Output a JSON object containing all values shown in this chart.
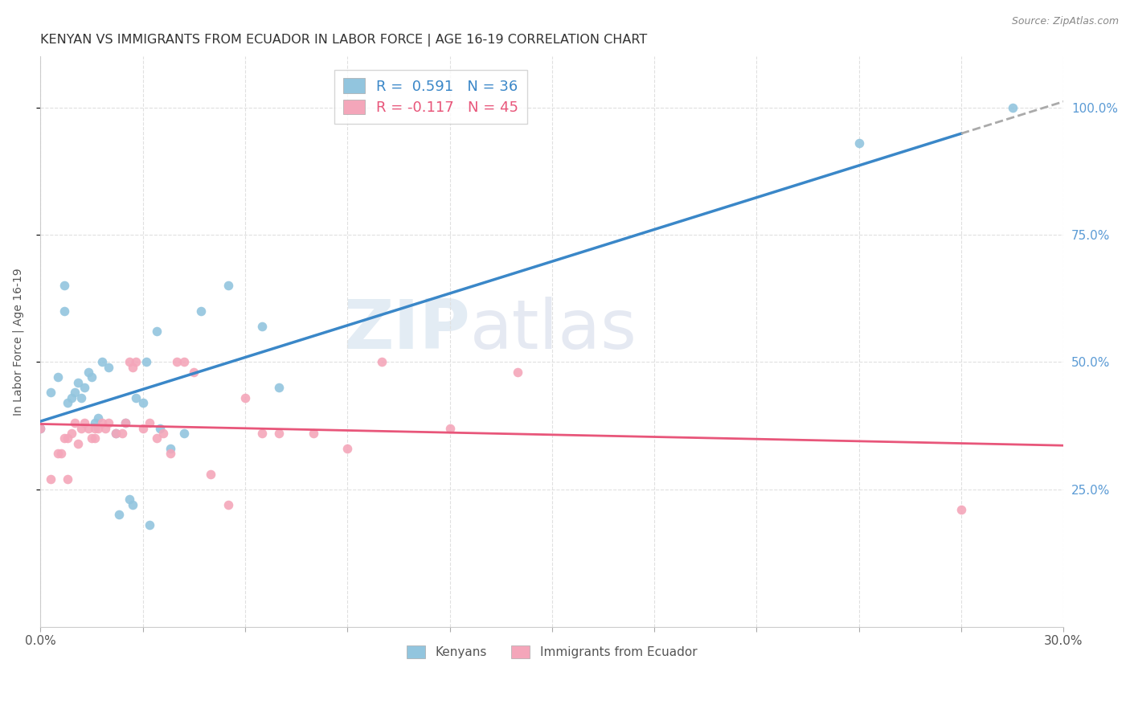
{
  "title": "KENYAN VS IMMIGRANTS FROM ECUADOR IN LABOR FORCE | AGE 16-19 CORRELATION CHART",
  "source": "Source: ZipAtlas.com",
  "ylabel": "In Labor Force | Age 16-19",
  "xlim": [
    0.0,
    0.3
  ],
  "ylim": [
    -0.02,
    1.1
  ],
  "blue_color": "#92c5de",
  "pink_color": "#f4a6ba",
  "blue_line_color": "#3a87c8",
  "pink_line_color": "#e8567a",
  "dashed_color": "#aaaaaa",
  "legend_blue_label": "R =  0.591   N = 36",
  "legend_pink_label": "R = -0.117   N = 45",
  "legend_bottom_blue": "Kenyans",
  "legend_bottom_pink": "Immigrants from Ecuador",
  "watermark_zip": "ZIP",
  "watermark_atlas": "atlas",
  "background_color": "#ffffff",
  "grid_color": "#e0e0e0",
  "blue_scatter_x": [
    0.0,
    0.003,
    0.005,
    0.007,
    0.007,
    0.008,
    0.009,
    0.01,
    0.011,
    0.012,
    0.013,
    0.014,
    0.015,
    0.016,
    0.017,
    0.018,
    0.02,
    0.022,
    0.023,
    0.025,
    0.026,
    0.027,
    0.028,
    0.03,
    0.031,
    0.032,
    0.034,
    0.035,
    0.038,
    0.042,
    0.047,
    0.055,
    0.065,
    0.07,
    0.24,
    0.285
  ],
  "blue_scatter_y": [
    0.37,
    0.44,
    0.47,
    0.65,
    0.6,
    0.42,
    0.43,
    0.44,
    0.46,
    0.43,
    0.45,
    0.48,
    0.47,
    0.38,
    0.39,
    0.5,
    0.49,
    0.36,
    0.2,
    0.38,
    0.23,
    0.22,
    0.43,
    0.42,
    0.5,
    0.18,
    0.56,
    0.37,
    0.33,
    0.36,
    0.6,
    0.65,
    0.57,
    0.45,
    0.93,
    1.0
  ],
  "pink_scatter_x": [
    0.0,
    0.003,
    0.005,
    0.006,
    0.007,
    0.008,
    0.008,
    0.009,
    0.01,
    0.011,
    0.012,
    0.013,
    0.014,
    0.015,
    0.016,
    0.016,
    0.017,
    0.018,
    0.019,
    0.02,
    0.022,
    0.024,
    0.025,
    0.026,
    0.027,
    0.028,
    0.03,
    0.032,
    0.034,
    0.036,
    0.038,
    0.04,
    0.042,
    0.045,
    0.05,
    0.055,
    0.06,
    0.065,
    0.07,
    0.08,
    0.09,
    0.1,
    0.12,
    0.14,
    0.27
  ],
  "pink_scatter_y": [
    0.37,
    0.27,
    0.32,
    0.32,
    0.35,
    0.35,
    0.27,
    0.36,
    0.38,
    0.34,
    0.37,
    0.38,
    0.37,
    0.35,
    0.37,
    0.35,
    0.37,
    0.38,
    0.37,
    0.38,
    0.36,
    0.36,
    0.38,
    0.5,
    0.49,
    0.5,
    0.37,
    0.38,
    0.35,
    0.36,
    0.32,
    0.5,
    0.5,
    0.48,
    0.28,
    0.22,
    0.43,
    0.36,
    0.36,
    0.36,
    0.33,
    0.5,
    0.37,
    0.48,
    0.21
  ],
  "xtick_positions": [
    0.0,
    0.03,
    0.06,
    0.09,
    0.12,
    0.15,
    0.18,
    0.21,
    0.24,
    0.27,
    0.3
  ],
  "xtick_labels": [
    "0.0%",
    "",
    "",
    "",
    "",
    "",
    "",
    "",
    "",
    "",
    "30.0%"
  ],
  "ytick_right_positions": [
    0.25,
    0.5,
    0.75,
    1.0
  ],
  "ytick_right_labels": [
    "25.0%",
    "50.0%",
    "75.0%",
    "100.0%"
  ],
  "ytick_right_color": "#5b9bd5"
}
